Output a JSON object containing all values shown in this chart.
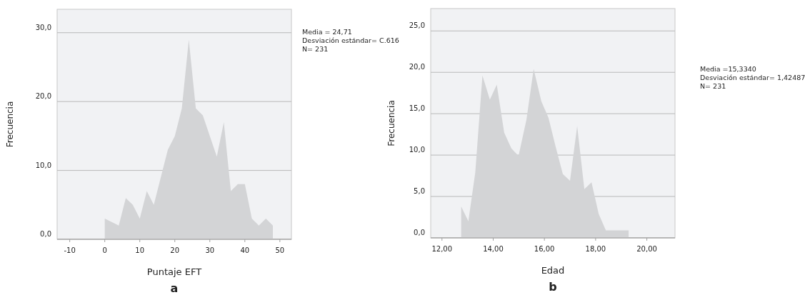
{
  "chart_data": [
    {
      "type": "area",
      "title": "a",
      "xlabel": "Puntaje EFT",
      "ylabel": "Frecuencia",
      "x": [
        0,
        4,
        6,
        8,
        10,
        12,
        14,
        16,
        18,
        20,
        22,
        24,
        26,
        28,
        30,
        32,
        34,
        36,
        38,
        40,
        42,
        44,
        46,
        48
      ],
      "values": [
        3,
        2,
        6,
        5,
        3,
        7,
        5,
        9,
        13,
        15,
        19,
        29,
        19,
        18,
        15,
        12,
        17,
        7,
        8,
        8,
        3,
        2,
        3,
        2
      ],
      "color": "#d3d4d6",
      "xlim": [
        -13.6,
        53.3
      ],
      "ylim": [
        0,
        33.4
      ],
      "xticks": [
        -10,
        0,
        10,
        20,
        30,
        40,
        50
      ],
      "yticks": [
        {
          "value": 0,
          "label": "0,0"
        },
        {
          "value": 10,
          "label": "10,0"
        },
        {
          "value": 20,
          "label": "20,0"
        },
        {
          "value": 30,
          "label": "30,0"
        }
      ],
      "grid": "y",
      "annotations": [
        "Media = 24,71",
        "Desviación estándar= C.616",
        "N= 231"
      ]
    },
    {
      "type": "area",
      "title": "b",
      "xlabel": "Edad",
      "ylabel": "Frecuencia",
      "x": [
        12.75,
        13.03,
        13.3,
        13.58,
        13.87,
        14.14,
        14.43,
        14.71,
        14.99,
        15.3,
        15.58,
        15.88,
        16.16,
        16.44,
        16.72,
        17.0,
        17.28,
        17.56,
        17.84,
        18.12,
        18.4,
        19.29
      ],
      "values": [
        3.8,
        2.0,
        7.9,
        19.6,
        16.7,
        18.5,
        12.7,
        10.8,
        9.9,
        14.3,
        20.4,
        16.5,
        14.5,
        11.0,
        7.7,
        6.9,
        13.5,
        5.9,
        6.7,
        2.9,
        0.9,
        0.9
      ],
      "color": "#d3d4d6",
      "xlim": [
        11.56,
        21.1
      ],
      "ylim": [
        0,
        27.7
      ],
      "xticks": [
        {
          "value": 12,
          "label": "12,00"
        },
        {
          "value": 14,
          "label": "14,00"
        },
        {
          "value": 16,
          "label": "16,00"
        },
        {
          "value": 18,
          "label": "18,00"
        },
        {
          "value": 20,
          "label": "20,00"
        }
      ],
      "yticks": [
        {
          "value": 0,
          "label": "0,0"
        },
        {
          "value": 5,
          "label": "5,0"
        },
        {
          "value": 10,
          "label": "10,0"
        },
        {
          "value": 15,
          "label": "15,0"
        },
        {
          "value": 20,
          "label": "20,0"
        },
        {
          "value": 25,
          "label": "25,0"
        }
      ],
      "grid": "y",
      "annotations": [
        "Media =15,3340",
        "Desviación estándar= 1,42487",
        "N= 231"
      ]
    }
  ]
}
